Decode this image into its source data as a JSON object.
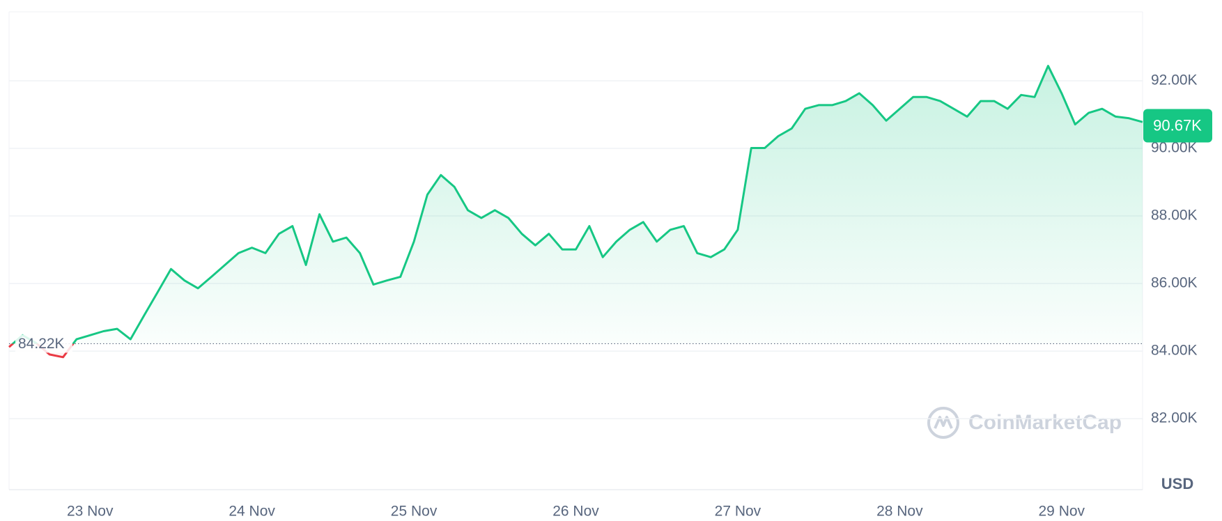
{
  "chart_data": {
    "type": "line",
    "categories": [
      null,
      null,
      null,
      null,
      null,
      null,
      "23 Nov",
      null,
      null,
      null,
      null,
      null,
      null,
      null,
      null,
      null,
      null,
      null,
      "24 Nov",
      null,
      null,
      null,
      null,
      null,
      null,
      null,
      null,
      null,
      null,
      null,
      "25 Nov",
      null,
      null,
      null,
      null,
      null,
      null,
      null,
      null,
      null,
      null,
      null,
      "26 Nov",
      null,
      null,
      null,
      null,
      null,
      null,
      null,
      null,
      null,
      null,
      null,
      "27 Nov",
      null,
      null,
      null,
      null,
      null,
      null,
      null,
      null,
      null,
      null,
      null,
      "28 Nov",
      null,
      null,
      null,
      null,
      null,
      null,
      null,
      null,
      null,
      null,
      null,
      "29 Nov",
      null,
      null,
      null,
      null,
      null,
      null
    ],
    "values": [
      84120,
      84470,
      84240,
      83900,
      83820,
      84350,
      84470,
      84590,
      84660,
      84350,
      85050,
      85740,
      86430,
      86090,
      85860,
      86200,
      86550,
      86900,
      87060,
      86900,
      87470,
      87700,
      86550,
      88050,
      87240,
      87360,
      86900,
      85970,
      86090,
      86200,
      87240,
      88630,
      89210,
      88860,
      88170,
      87940,
      88170,
      87940,
      87470,
      87130,
      87470,
      87010,
      87010,
      87700,
      86780,
      87240,
      87590,
      87820,
      87240,
      87590,
      87700,
      86900,
      86780,
      87010,
      87590,
      90010,
      90010,
      90360,
      90590,
      91170,
      91280,
      91280,
      91400,
      91630,
      91280,
      90820,
      91170,
      91520,
      91520,
      91400,
      91170,
      90940,
      91400,
      91400,
      91170,
      91580,
      91520,
      92440,
      91630,
      90710,
      91050,
      91170,
      90940,
      90890,
      90780
    ],
    "up_color": "#16c784",
    "down_color": "#ea3943",
    "ylim": [
      79900,
      94040
    ],
    "yticks": [
      {
        "value": 82000,
        "label": "82.00K"
      },
      {
        "value": 84000,
        "label": "84.00K"
      },
      {
        "value": 86000,
        "label": "86.00K"
      },
      {
        "value": 88000,
        "label": "88.00K"
      },
      {
        "value": 90000,
        "label": "90.00K"
      },
      {
        "value": 92000,
        "label": "92.00K"
      }
    ],
    "grid": true,
    "reference_line": {
      "value": 84220,
      "label": "84.22K"
    },
    "last_price": {
      "value": 90670,
      "label": "90.67K"
    },
    "y_axis_label": "USD",
    "watermark": "CoinMarketCap"
  }
}
